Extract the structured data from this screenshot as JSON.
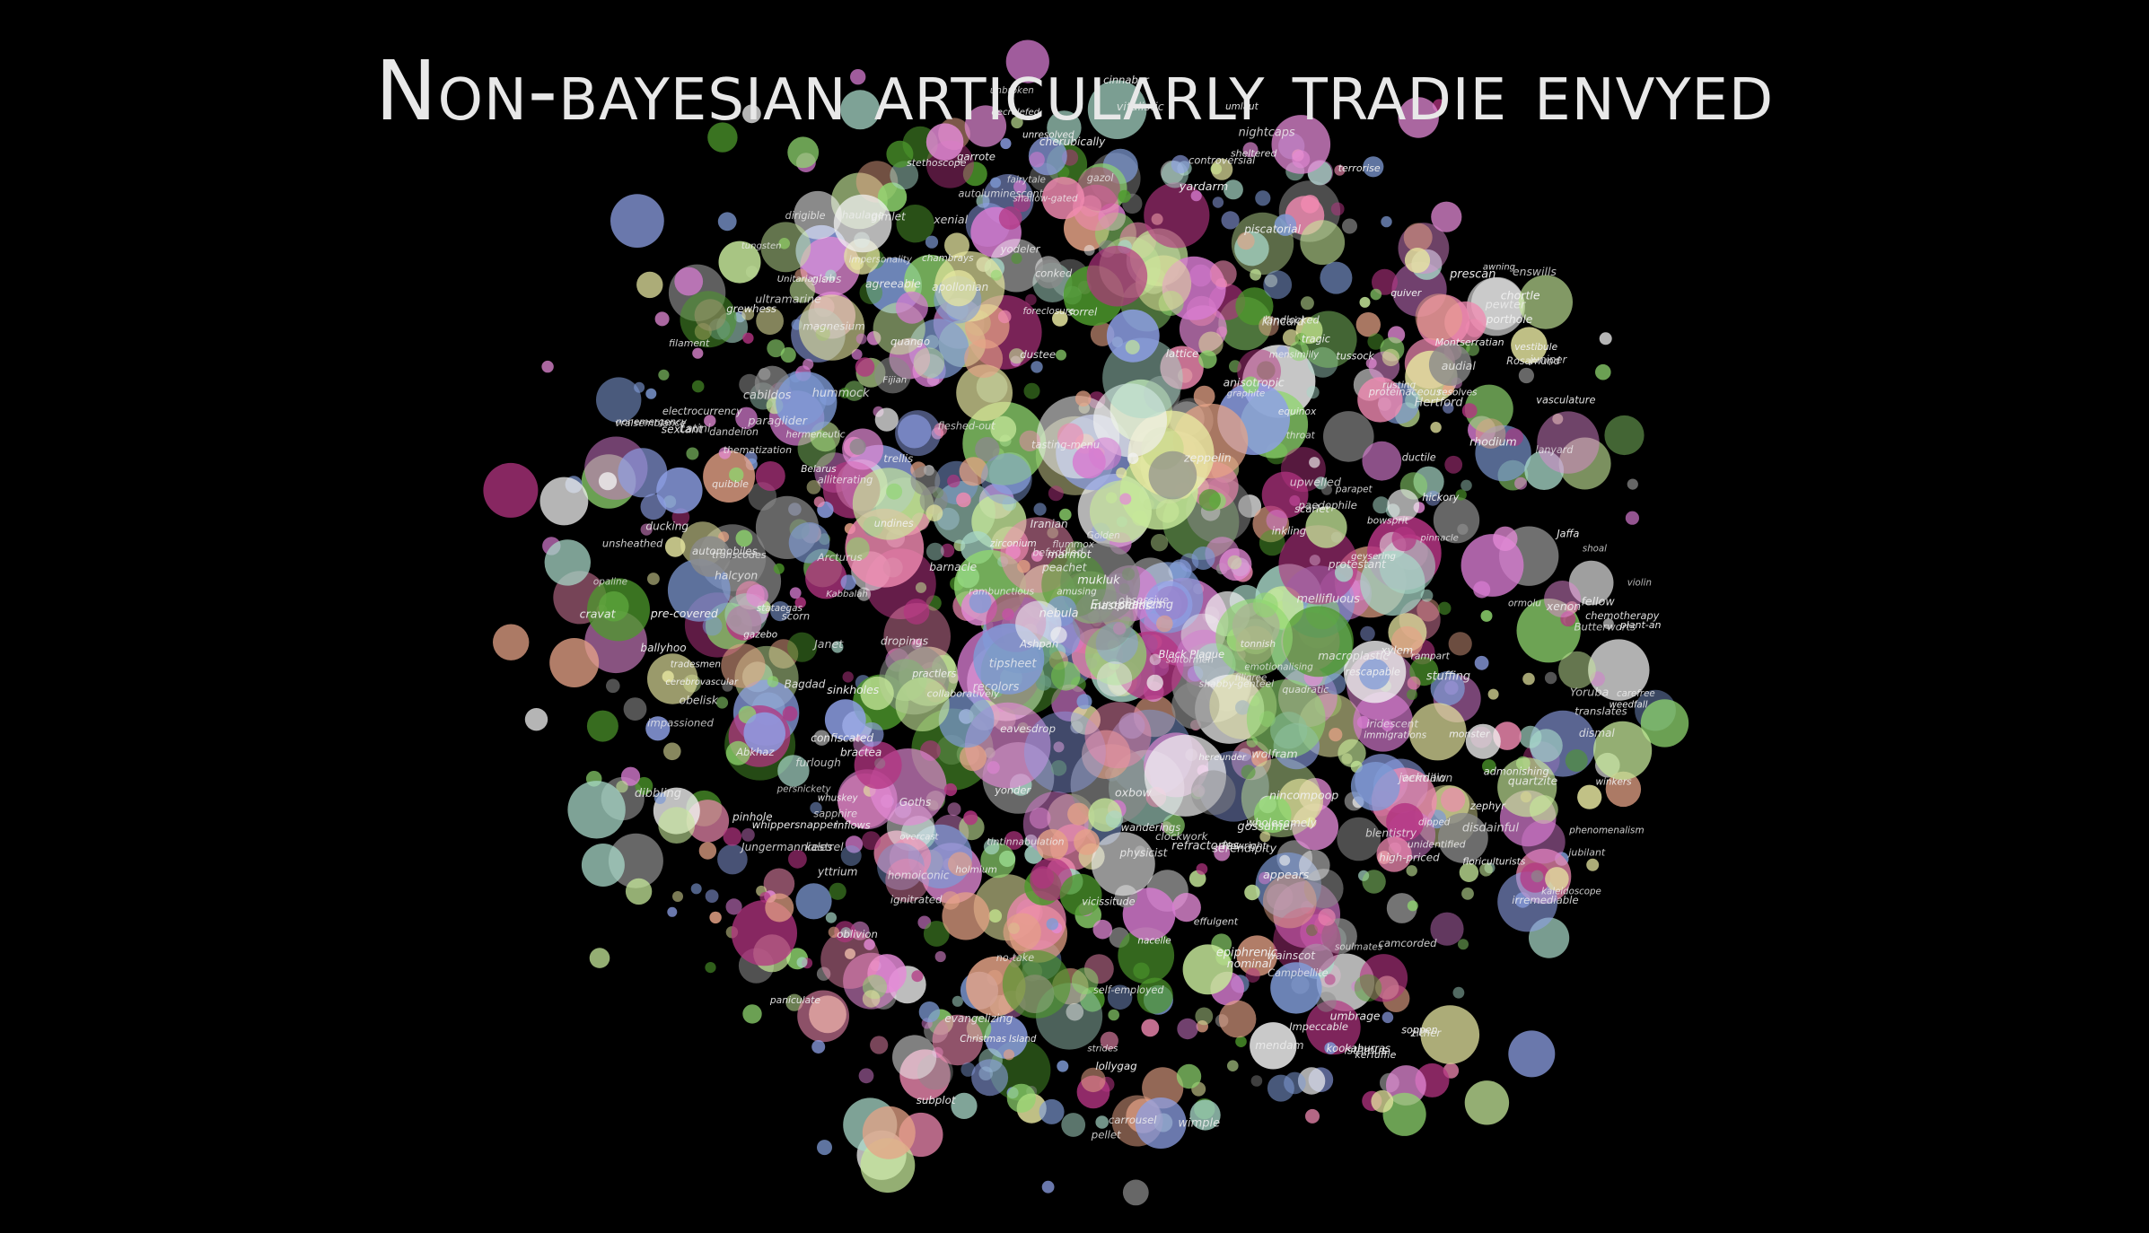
{
  "title": "Non-bayesian articularly tradie envyed",
  "chart_data": {
    "type": "scatter",
    "title": "Non-bayesian articularly tradie envyed",
    "xlabel": "",
    "ylabel": "",
    "grid": false,
    "legend": "none",
    "background": "#000000",
    "palette": [
      "#8fd66f",
      "#e38ad6",
      "#8ea0e6",
      "#f08ab1",
      "#c6e89a",
      "#4e9a2c",
      "#b43482",
      "#e6a387",
      "#a8d8c8",
      "#8a8a8a",
      "#f2f2f2",
      "#7f9bd6",
      "#d67bd0",
      "#e6e6a0"
    ],
    "labels": [
      "whuskey",
      "hereunder",
      "paniculate",
      "admonishing",
      "Bagdad",
      "wholesomely",
      "immigrations",
      "Kincaid",
      "no-take",
      "Impeccable",
      "Europeanizing",
      "geysering",
      "irremediable",
      "audial",
      "camcorded",
      "plant-an",
      "Hertford",
      "emotionalising",
      "stuffing",
      "agreeable",
      "vitalistic",
      "porthole",
      "terrorise",
      "resolves",
      "Golden",
      "unsheathed",
      "Yoruba",
      "Campbellite",
      "conked",
      "Goths",
      "Jungermanniales",
      "Plowright",
      "rescapable",
      "Montserratian",
      "dropings",
      "carrousel",
      "shallow-gated",
      "proteinaceous",
      "Latini",
      "scorn",
      "peachet",
      "Butterworts",
      "Belarus",
      "macroplastic",
      "mensimilly",
      "prescan",
      "tonnish",
      "monster",
      "undines",
      "controversial",
      "rusting",
      "clinkers",
      "vasculature",
      "practlers",
      "Arcturus",
      "glabs",
      "collaboratively",
      "translates",
      "transcodes",
      "Unitarianism",
      "inflows",
      "homoiconic",
      "dustee",
      "cherubically",
      "strides",
      "Kabbalah",
      "Janet",
      "stataegas",
      "Iranian",
      "grewhess",
      "quadratic",
      "Rosamund",
      "high-priced",
      "tasting-menu",
      "tipsheet",
      "electrocurrency",
      "decrelefed",
      "thematization",
      "landlocked",
      "violin",
      "amusing",
      "refractories",
      "Christmas Island",
      "floriculturists",
      "nightcaps",
      "stethoscope",
      "winkers",
      "bractea",
      "appears",
      "recolors",
      "Black Plague",
      "disdainful",
      "ignitrated",
      "mastoiditis",
      "autoluminescent",
      "fleshed-out",
      "impersonality",
      "confiscated",
      "Ashpan",
      "nonemergency",
      "paedophile",
      "epiphrenic",
      "Abkhaz",
      "phenomenalism",
      "unresolved",
      "subplot",
      "pinhole",
      "self-employed",
      "hermeneutic",
      "ducking",
      "cabildos",
      "piscatorial",
      "mendam",
      "upwelled",
      "carefree",
      "weedfall",
      "tradesmen",
      "shabby-genteel",
      "physicist",
      "chambrays",
      "protestant",
      "foreclosure",
      "impassioned",
      "anisotropic",
      "fellow",
      "pellet",
      "soppen",
      "saltormen",
      "gazol",
      "automobiles",
      "kookaburras",
      "soulmates",
      "pre-covered",
      "blentistry",
      "evangelizing",
      "obsessive",
      "fairytale",
      "alliterating",
      "dibbling",
      "throat",
      "dipped",
      "tragic",
      "apollonian",
      "enswills",
      "wanderings",
      "sinkholes",
      "vraisemblance",
      "unidentified",
      "cerebrovascular",
      "chemotherapy",
      "scarlet",
      "ormolu",
      "eavesdrop",
      "Jaffa",
      "Fijian",
      "ballyhoo",
      "shoal",
      "paraglider",
      "haulage",
      "cinnabar",
      "gimlet",
      "bowsprit",
      "quango",
      "hickory",
      "mukluk",
      "pinnacle",
      "garrote",
      "furlough",
      "zeppelin",
      "oxbow",
      "sorrel",
      "tussock",
      "wimple",
      "yardarm",
      "barnacle",
      "cravat",
      "dirigible",
      "equinox",
      "filigree",
      "gazebo",
      "hummock",
      "isthmus",
      "jackdaw",
      "kestrel",
      "lanyard",
      "marmot",
      "nacelle",
      "obelisk",
      "parapet",
      "quiver",
      "rampart",
      "sextant",
      "trellis",
      "umlaut",
      "vestibule",
      "wainscot",
      "xylem",
      "yodeler",
      "zither",
      "nominal",
      "dismal",
      "overcast",
      "unbroken",
      "sheltered",
      "awning",
      "befuddled",
      "chortle",
      "dandelion",
      "effulgent",
      "flummox",
      "gossamer",
      "halcyon",
      "inkling",
      "jubilant",
      "kerfuffle",
      "lollygag",
      "mellifluous",
      "nincompoop",
      "oblivion",
      "persnickety",
      "quibble",
      "rambunctious",
      "serendipity",
      "tintinnabulation",
      "umbrage",
      "vicissitude",
      "whippersnapper",
      "xenial",
      "yonder",
      "zephyr",
      "clockwork",
      "ductile",
      "filament",
      "graphite",
      "holmium",
      "iridescent",
      "juniper",
      "kaleidoscope",
      "lattice",
      "magnesium",
      "nebula",
      "opaline",
      "pewter",
      "quartzite",
      "rhodium",
      "sapphire",
      "tungsten",
      "ultramarine",
      "vermilion",
      "wolfram",
      "xenon",
      "yttrium",
      "zirconium"
    ]
  }
}
